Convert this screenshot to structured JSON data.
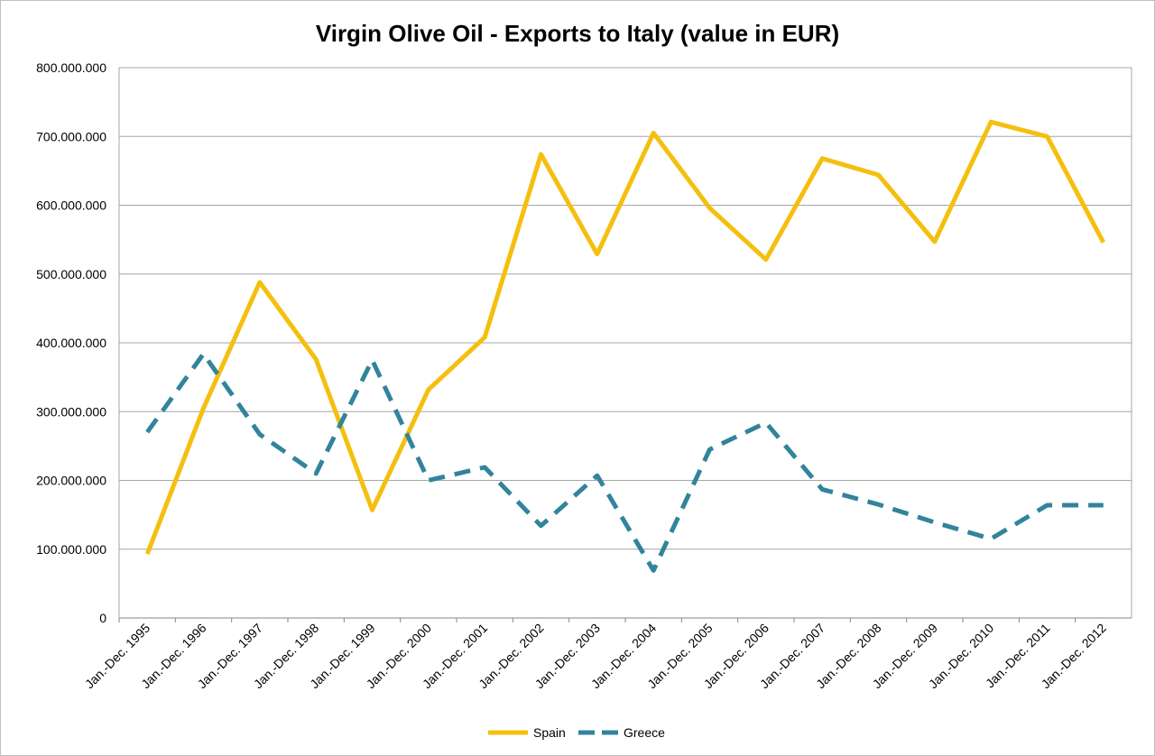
{
  "chart_data": {
    "type": "line",
    "title": "Virgin Olive Oil - Exports to Italy (value in EUR)",
    "xlabel": "",
    "ylabel": "",
    "ylim": [
      0,
      800000000
    ],
    "yticks": [
      0,
      100000000,
      200000000,
      300000000,
      400000000,
      500000000,
      600000000,
      700000000,
      800000000
    ],
    "ytick_labels": [
      "0",
      "100.000.000",
      "200.000.000",
      "300.000.000",
      "400.000.000",
      "500.000.000",
      "600.000.000",
      "700.000.000",
      "800.000.000"
    ],
    "grid": "horizontal",
    "legend_position": "bottom",
    "categories": [
      "Jan.-Dec. 1995",
      "Jan.-Dec. 1996",
      "Jan.-Dec. 1997",
      "Jan.-Dec. 1998",
      "Jan.-Dec. 1999",
      "Jan.-Dec. 2000",
      "Jan.-Dec. 2001",
      "Jan.-Dec. 2002",
      "Jan.-Dec. 2003",
      "Jan.-Dec. 2004",
      "Jan.-Dec. 2005",
      "Jan.-Dec. 2006",
      "Jan.-Dec. 2007",
      "Jan.-Dec. 2008",
      "Jan.-Dec. 2009",
      "Jan.-Dec. 2010",
      "Jan.-Dec. 2011",
      "Jan.-Dec. 2012"
    ],
    "series": [
      {
        "name": "Spain",
        "color": "#f5bf0f",
        "style": "solid",
        "values": [
          93000000,
          305000000,
          488000000,
          376000000,
          157000000,
          332000000,
          408000000,
          674000000,
          529000000,
          705000000,
          596000000,
          521000000,
          668000000,
          644000000,
          547000000,
          721000000,
          700000000,
          546000000
        ]
      },
      {
        "name": "Greece",
        "color": "#31849b",
        "style": "dashed",
        "values": [
          270000000,
          384000000,
          267000000,
          210000000,
          375000000,
          200000000,
          219000000,
          134000000,
          207000000,
          69000000,
          245000000,
          284000000,
          187000000,
          165000000,
          139000000,
          115000000,
          164000000,
          164000000
        ]
      }
    ]
  }
}
